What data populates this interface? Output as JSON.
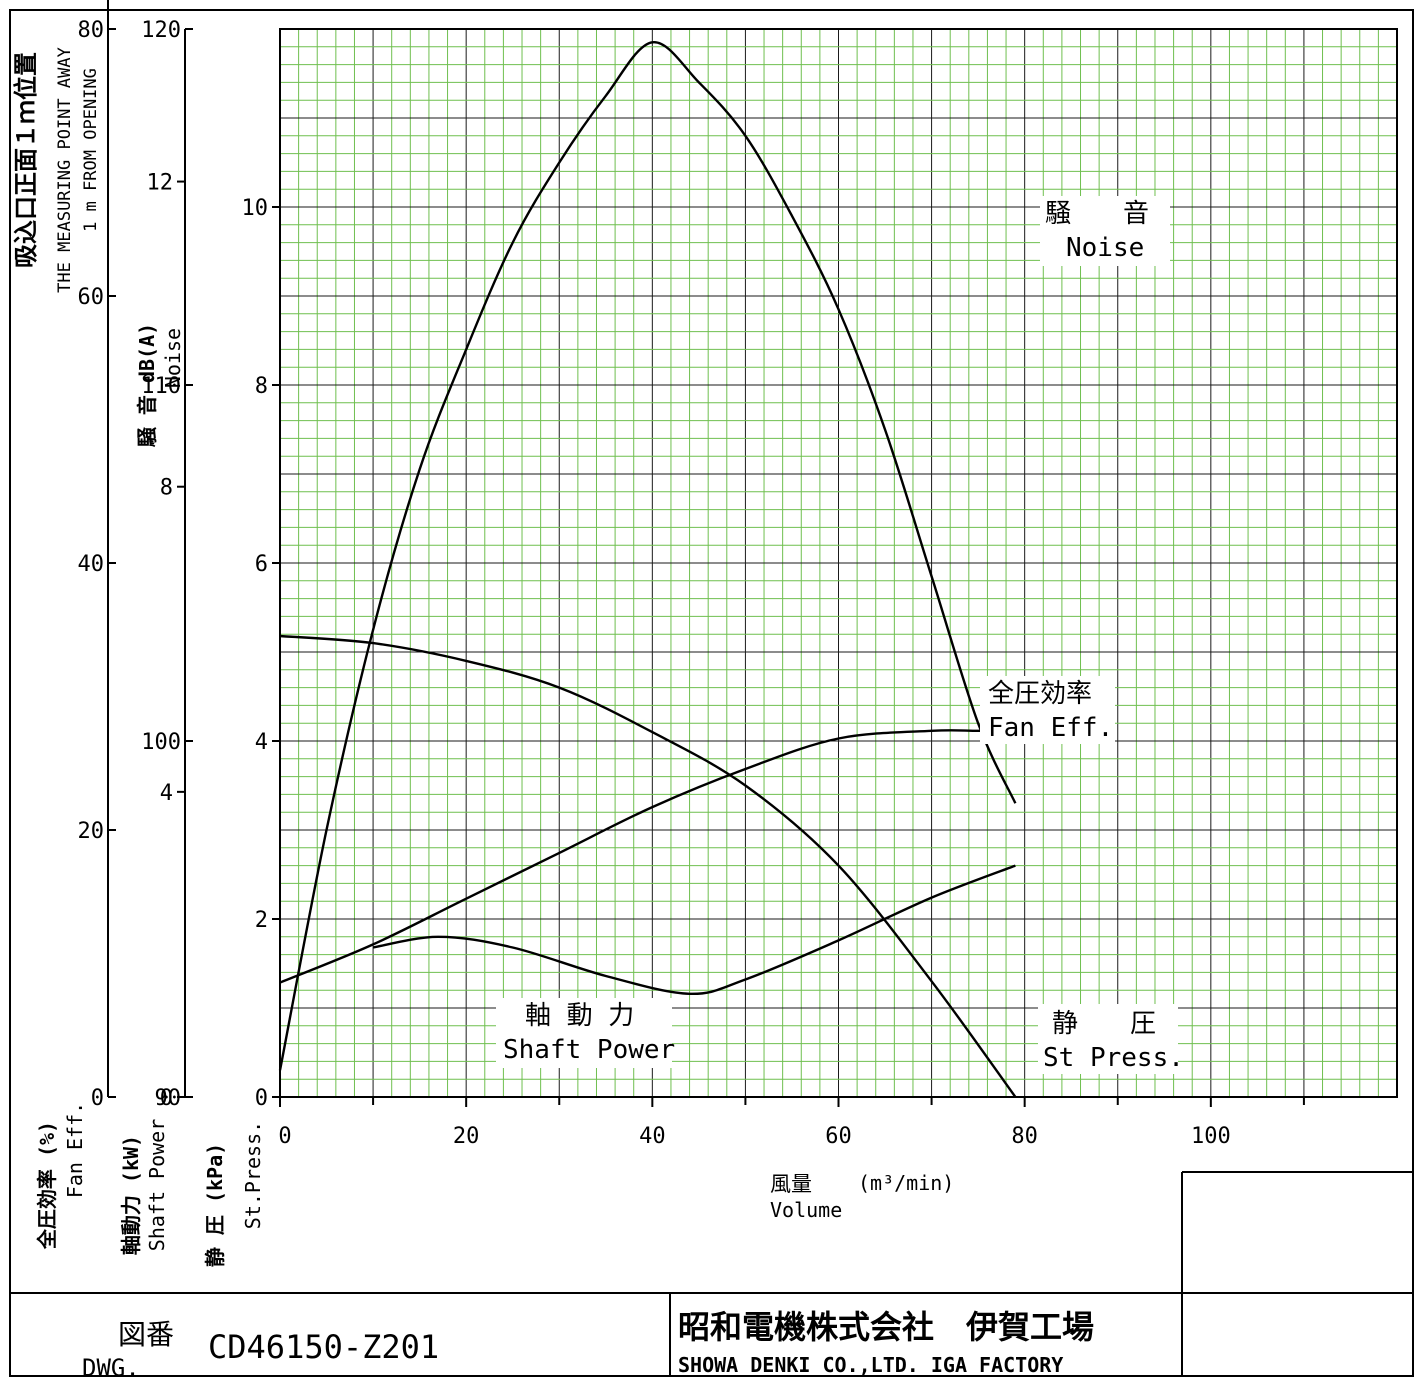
{
  "header": {
    "jp": "吸込口正面１ｍ位置",
    "en1": "THE MEASURING POINT AWAY",
    "en2": "1 m FROM OPENING"
  },
  "axes": {
    "noise_label_jp": "騒 音 dB(A)",
    "noise_label_en": "Noise",
    "eff_label_jp": "全圧効率 (%)",
    "eff_label_en": "Fan Eff.",
    "power_label_jp": "軸動力 (kW)",
    "power_label_en": "Shaft Power",
    "press_label_jp": "静 圧 (kPa)",
    "press_label_en": "St.Press.",
    "x_label_jp": "風量",
    "x_label_unit": "(m³/min)",
    "x_label_en": "Volume"
  },
  "curve_labels": {
    "noise_jp": "騒　　音",
    "noise_en": "Noise",
    "eff_jp": "全圧効率",
    "eff_en": "Fan Eff.",
    "power_jp": "軸 動 力",
    "power_en": "Shaft Power",
    "press_jp": "静　　圧",
    "press_en": "St Press."
  },
  "titleblock": {
    "dwg_jp": "図番",
    "dwg_en": "DWG.",
    "dwg_no": "CD46150-Z201",
    "company_jp": "昭和電機株式会社　伊賀工場",
    "company_en": "SHOWA DENKI CO.,LTD.  IGA FACTORY"
  },
  "colors": {
    "grid_minor": "#6fbf4f",
    "grid_major": "#1a1a1a",
    "line": "#000000"
  },
  "chart_data": {
    "type": "line",
    "x_axis": {
      "label": "風量 (m³/min) Volume",
      "range": [
        0,
        120
      ],
      "ticks": [
        0,
        20,
        40,
        60,
        80,
        100
      ]
    },
    "pressure_axis": {
      "label": "静 圧 (kPa) St.Press.",
      "range": [
        0,
        12
      ],
      "ticks": [
        0,
        2,
        4,
        6,
        8,
        10
      ]
    },
    "efficiency_axis": {
      "label": "全圧効率 (%) Fan Eff.",
      "range": [
        0,
        80
      ],
      "ticks": [
        0,
        20,
        40,
        60,
        80
      ]
    },
    "power_axis": {
      "label": "軸動力 (kW) Shaft Power",
      "range": [
        0,
        14
      ],
      "ticks": [
        0,
        4,
        8,
        12
      ]
    },
    "noise_axis": {
      "label": "騒 音 dB(A) Noise",
      "range": [
        90,
        120
      ],
      "ticks": [
        90,
        100,
        110,
        120
      ]
    },
    "grid": true,
    "series": [
      {
        "name": "騒音 Noise",
        "axis": "noise",
        "x": [
          10,
          17,
          25,
          35,
          44,
          50,
          60,
          70,
          79
        ],
        "y": [
          94.2,
          94.5,
          94.2,
          93.4,
          92.9,
          93.3,
          94.4,
          95.6,
          96.5
        ]
      },
      {
        "name": "全圧効率 Fan Eff.",
        "axis": "efficiency",
        "x": [
          0,
          5,
          10,
          15,
          20,
          25,
          30,
          35,
          40,
          45,
          50,
          55,
          60,
          65,
          70,
          75,
          79
        ],
        "y": [
          2,
          20,
          35,
          47,
          56,
          64,
          70,
          75,
          79,
          76,
          72,
          66,
          59,
          50,
          39,
          28,
          22
        ]
      },
      {
        "name": "軸動力 Shaft Power",
        "axis": "power",
        "x": [
          0,
          10,
          20,
          30,
          40,
          50,
          60,
          70,
          75,
          79
        ],
        "y": [
          1.5,
          2.0,
          2.6,
          3.2,
          3.8,
          4.3,
          4.7,
          4.8,
          4.8,
          4.8
        ]
      },
      {
        "name": "静圧 St Press.",
        "axis": "pressure",
        "x": [
          0,
          10,
          20,
          30,
          40,
          50,
          60,
          70,
          79
        ],
        "y": [
          5.18,
          5.1,
          4.9,
          4.6,
          4.1,
          3.5,
          2.6,
          1.3,
          0
        ]
      }
    ]
  }
}
